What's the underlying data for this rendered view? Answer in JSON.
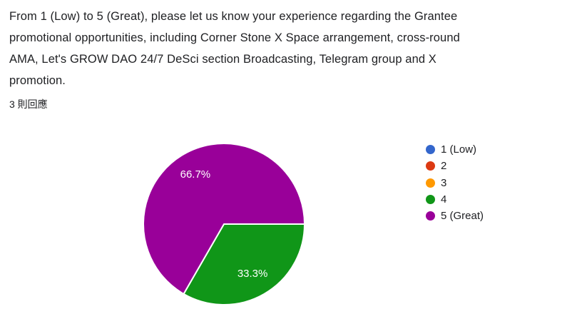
{
  "question": {
    "title": "From 1 (Low) to 5 (Great), please let us know your experience regarding the Grantee promotional opportunities, including Corner Stone X Space arrangement, cross-round AMA, Let's GROW DAO 24/7 DeSci section Broadcasting, Telegram group and X promotion.",
    "title_lines": [
      "From 1 (Low) to 5 (Great), please let us know your experience regarding the Grantee",
      "promotional opportunities, including Corner Stone X Space arrangement, cross-round",
      "AMA, Let's GROW DAO 24/7 DeSci section Broadcasting, Telegram group and X",
      "promotion."
    ],
    "response_count_label": "3 則回應"
  },
  "chart_data": {
    "type": "pie",
    "categories": [
      "1 (Low)",
      "2",
      "3",
      "4",
      "5 (Great)"
    ],
    "values": [
      0,
      0,
      0,
      1,
      2
    ],
    "percentages": [
      0,
      0,
      0,
      33.3,
      66.7
    ],
    "slice_labels": [
      "",
      "",
      "",
      "33.3%",
      "66.7%"
    ],
    "colors": [
      "#3366CC",
      "#DC3912",
      "#FF9900",
      "#109618",
      "#990099"
    ],
    "total_responses": 3,
    "start_angle_deg": 0,
    "rotation": "clockwise-from-east",
    "legend_position": "right",
    "slice_label_color": "#FFFFFF",
    "slice_border_color": "#FFFFFF",
    "text_color": "#202124"
  }
}
